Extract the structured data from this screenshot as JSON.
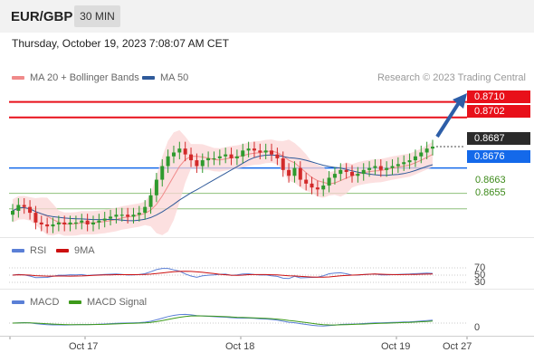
{
  "header": {
    "symbol": "EUR/GBP",
    "timeframe": "30 MIN",
    "datetime": "Thursday, October 19, 2023 7:08:07 AM CET"
  },
  "legend": {
    "ma20": "MA 20 + Bollinger Bands",
    "ma50": "MA 50",
    "credit": "Research © 2023 Trading Central",
    "ma20_color": "#f08a8a",
    "ma50_color": "#2f5a9a"
  },
  "levels": {
    "r2": "0.8710",
    "r1": "0.8702",
    "last": "0.8687",
    "pivot": "0.8676",
    "s1": "0.8663",
    "s2": "0.8655",
    "resistance_color": "#e8101a",
    "pivot_color": "#1469ea",
    "support_color": "#3d8a1a"
  },
  "rsi": {
    "label": "RSI",
    "ma_label": "9MA",
    "level_70": "70",
    "level_50": "50",
    "level_30": "30",
    "rsi_color": "#5a7fd6",
    "ma_color": "#cc1010"
  },
  "macd": {
    "label": "MACD",
    "signal_label": "MACD Signal",
    "zero": "0",
    "macd_color": "#5a7fd6",
    "signal_color": "#3d9a1a"
  },
  "xaxis": {
    "labels": [
      "Oct 17",
      "Oct 18",
      "Oct 19",
      "Oct 27"
    ]
  },
  "chart_data": {
    "type": "candlestick",
    "instrument": "EUR/GBP",
    "timeframe": "30 MIN",
    "ylim": [
      0.8647,
      0.8714
    ],
    "levels": [
      0.871,
      0.8702,
      0.8687,
      0.8676,
      0.8663,
      0.8655
    ],
    "close_path": [
      0.8654,
      0.8657,
      0.8656,
      0.8653,
      0.8648,
      0.8647,
      0.8646,
      0.8647,
      0.8648,
      0.8647,
      0.8648,
      0.8648,
      0.8649,
      0.8647,
      0.8648,
      0.8649,
      0.865,
      0.8651,
      0.8652,
      0.8652,
      0.8651,
      0.8652,
      0.8653,
      0.8656,
      0.8662,
      0.867,
      0.8677,
      0.8682,
      0.8684,
      0.8686,
      0.8683,
      0.868,
      0.8677,
      0.868,
      0.8681,
      0.8681,
      0.8682,
      0.8683,
      0.8681,
      0.8682,
      0.8685,
      0.8686,
      0.8685,
      0.8684,
      0.8685,
      0.8683,
      0.8681,
      0.8675,
      0.8672,
      0.8676,
      0.867,
      0.8668,
      0.8666,
      0.8665,
      0.8667,
      0.8671,
      0.8673,
      0.8675,
      0.8674,
      0.8672,
      0.8673,
      0.8675,
      0.8676,
      0.8677,
      0.8675,
      0.8676,
      0.8677,
      0.8678,
      0.8679,
      0.868,
      0.8682,
      0.8684,
      0.8686,
      0.8687
    ]
  }
}
